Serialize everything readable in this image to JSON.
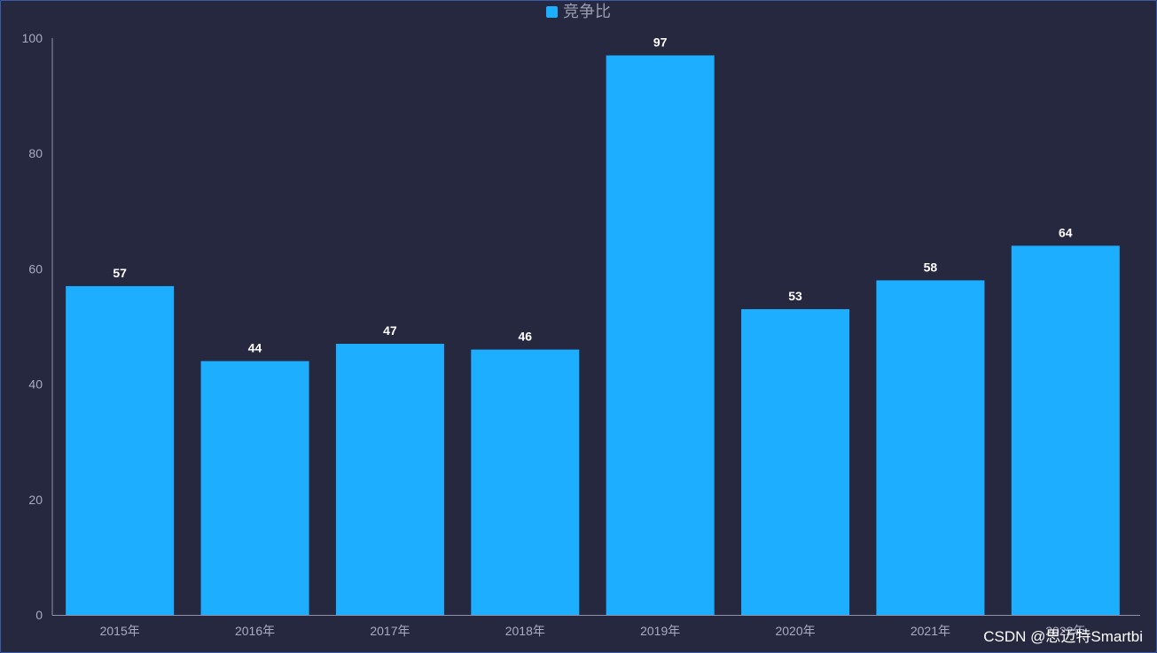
{
  "chart_data": {
    "type": "bar",
    "categories": [
      "2015年",
      "2016年",
      "2017年",
      "2018年",
      "2019年",
      "2020年",
      "2021年",
      "2022年"
    ],
    "series": [
      {
        "name": "竞争比",
        "values": [
          57,
          44,
          47,
          46,
          97,
          53,
          58,
          64
        ]
      }
    ],
    "ylim": [
      0,
      100
    ],
    "yticks": [
      0,
      20,
      40,
      60,
      80,
      100
    ],
    "legend_position": "top-center",
    "data_labels": true,
    "grid": false,
    "colors": {
      "bar": "#1eaeff",
      "background": "#262840",
      "axis": "#8e92a8",
      "tick_label": "#a9acc0",
      "data_label": "#ffffff"
    }
  },
  "watermark": "CSDN @思迈特Smartbi"
}
